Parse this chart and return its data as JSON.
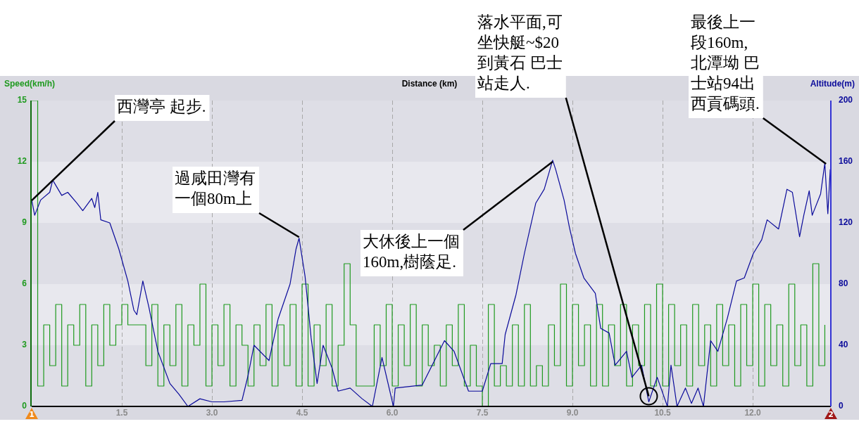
{
  "chart_data": {
    "type": "line",
    "xlabel": "Distance (km)",
    "ylabel": "Speed(km/h)",
    "y2label": "Altitude(m)",
    "xlim": [
      0,
      13.3
    ],
    "xticks": [
      1.5,
      {
        "value": 3,
        "label": "3.0"
      },
      4.5,
      {
        "value": 6,
        "label": "6.0"
      },
      7.5,
      {
        "value": 9,
        "label": "9.0"
      },
      10.5,
      {
        "value": 12,
        "label": "12.0"
      }
    ],
    "ylim": [
      0,
      15
    ],
    "yticks": [
      0,
      3,
      6,
      9,
      12,
      15
    ],
    "y2lim": [
      0,
      200
    ],
    "y2ticks": [
      0,
      40,
      80,
      120,
      160,
      200
    ],
    "grid": "x",
    "legend": false,
    "series": [
      {
        "type": "step",
        "axis": "y",
        "color": "#1f9a1f",
        "x": [
          0,
          0.1,
          0.2,
          0.3,
          0.4,
          0.5,
          0.6,
          0.7,
          0.8,
          0.9,
          1.0,
          1.1,
          1.2,
          1.3,
          1.4,
          1.5,
          1.6,
          1.7,
          1.8,
          1.9,
          2.0,
          2.1,
          2.2,
          2.3,
          2.4,
          2.5,
          2.6,
          2.7,
          2.8,
          2.9,
          3.0,
          3.1,
          3.2,
          3.3,
          3.4,
          3.5,
          3.6,
          3.7,
          3.8,
          3.9,
          4.0,
          4.1,
          4.2,
          4.3,
          4.4,
          4.5,
          4.6,
          4.7,
          4.8,
          4.9,
          5.0,
          5.1,
          5.2,
          5.3,
          5.4,
          5.5,
          5.6,
          5.7,
          5.8,
          5.9,
          6.0,
          6.1,
          6.2,
          6.3,
          6.4,
          6.5,
          6.6,
          6.7,
          6.8,
          6.9,
          7.0,
          7.1,
          7.2,
          7.3,
          7.4,
          7.5,
          7.6,
          7.7,
          7.8,
          7.9,
          8.0,
          8.1,
          8.2,
          8.3,
          8.4,
          8.5,
          8.6,
          8.7,
          8.8,
          8.9,
          9.0,
          9.1,
          9.2,
          9.3,
          9.4,
          9.5,
          9.6,
          9.7,
          9.8,
          9.9,
          10.0,
          10.1,
          10.2,
          10.3,
          10.4,
          10.5,
          10.6,
          10.7,
          10.8,
          10.9,
          11.0,
          11.1,
          11.2,
          11.3,
          11.4,
          11.5,
          11.6,
          11.7,
          11.8,
          11.9,
          12.0,
          12.1,
          12.2,
          12.3,
          12.4,
          12.5,
          12.6,
          12.7,
          12.8,
          12.9,
          13.0,
          13.1,
          13.2
        ],
        "values": [
          15,
          1,
          4,
          2,
          5,
          1,
          4,
          3,
          5,
          1,
          4,
          2,
          5,
          3,
          4,
          5,
          4,
          4,
          4,
          2,
          5,
          1,
          4,
          2,
          5,
          1,
          4,
          3,
          6,
          1,
          4,
          2,
          5,
          1,
          4,
          3,
          1,
          4,
          2,
          5,
          1,
          4,
          2,
          5,
          1,
          6,
          1,
          4,
          2,
          5,
          1,
          3,
          7,
          4,
          1,
          1,
          1,
          4,
          2,
          5,
          1,
          4,
          2,
          5,
          1,
          4,
          2,
          3,
          1,
          4,
          2,
          5,
          1,
          3,
          1,
          0,
          5,
          1,
          2,
          1,
          4,
          1,
          5,
          1,
          2,
          1,
          4,
          2,
          6,
          1,
          5,
          2,
          4,
          1,
          5,
          1,
          4,
          2,
          5,
          1,
          4,
          2,
          5,
          1,
          6,
          1,
          5,
          2,
          4,
          1,
          5,
          2,
          4,
          1,
          5,
          2,
          4,
          1,
          5,
          2,
          6,
          1,
          5,
          2,
          4,
          1,
          6,
          2,
          4,
          1,
          7,
          2,
          4
        ]
      },
      {
        "axis": "y2",
        "color": "#0a0a9a",
        "x": [
          0,
          0.05,
          0.15,
          0.3,
          0.35,
          0.5,
          0.6,
          0.75,
          0.85,
          1.0,
          1.05,
          1.1,
          1.15,
          1.3,
          1.45,
          1.6,
          1.7,
          1.75,
          1.85,
          1.95,
          2.1,
          2.3,
          2.45,
          2.6,
          2.8,
          3.0,
          3.2,
          3.5,
          3.6,
          3.7,
          3.95,
          4.1,
          4.3,
          4.4,
          4.45,
          4.55,
          4.65,
          4.75,
          4.85,
          5.0,
          5.1,
          5.3,
          5.5,
          5.67,
          5.83,
          6.02,
          6.05,
          6.5,
          6.87,
          7.03,
          7.27,
          7.5,
          7.64,
          7.83,
          7.88,
          8.06,
          8.2,
          8.39,
          8.53,
          8.67,
          8.72,
          8.86,
          8.95,
          9.05,
          9.19,
          9.38,
          9.47,
          9.61,
          9.71,
          9.9,
          9.99,
          10.15,
          10.27,
          10.41,
          10.58,
          10.64,
          10.74,
          10.88,
          10.98,
          11.09,
          11.18,
          11.3,
          11.42,
          11.58,
          11.73,
          11.86,
          12.01,
          12.15,
          12.24,
          12.43,
          12.57,
          12.66,
          12.78,
          12.85,
          12.94,
          12.99,
          13.13,
          13.2,
          13.25,
          13.29
        ],
        "values": [
          135,
          125,
          135,
          140,
          148,
          138,
          140,
          133,
          128,
          136,
          130,
          140,
          122,
          120,
          103,
          82,
          63,
          60,
          82,
          65,
          36,
          15,
          8,
          0,
          5,
          3,
          3,
          4,
          20,
          40,
          30,
          57,
          80,
          103,
          110,
          85,
          45,
          15,
          40,
          25,
          10,
          12,
          5,
          0,
          32,
          0,
          12,
          14,
          43,
          36,
          10,
          10,
          28,
          28,
          47,
          73,
          100,
          133,
          142,
          161,
          155,
          135,
          117,
          100,
          84,
          74,
          51,
          48,
          27,
          36,
          19,
          27,
          3,
          19,
          0,
          27,
          0,
          12,
          2,
          12,
          0,
          43,
          36,
          58,
          82,
          84,
          100,
          109,
          122,
          116,
          142,
          140,
          111,
          125,
          141,
          125,
          139,
          159,
          126,
          155
        ]
      }
    ],
    "annotations": [
      {
        "text": "西灣亭 起步.",
        "x": 0,
        "y": 10.1
      },
      {
        "text": "過咸田灣有一個80m上",
        "x": 4.45,
        "y": 8.3
      },
      {
        "text": "大休後上一個160m,樹蔭足.",
        "x": 8.67,
        "y": 12
      },
      {
        "text": "落水平面,可坐快艇~$20到黃石 巴士站走人.",
        "x": 10.27,
        "y": 0.5
      },
      {
        "text": "最後上一段160m,北潭坳 巴士站94出西貢碼頭.",
        "x": 13.22,
        "y": 11.9
      },
      "1",
      "2"
    ]
  }
}
